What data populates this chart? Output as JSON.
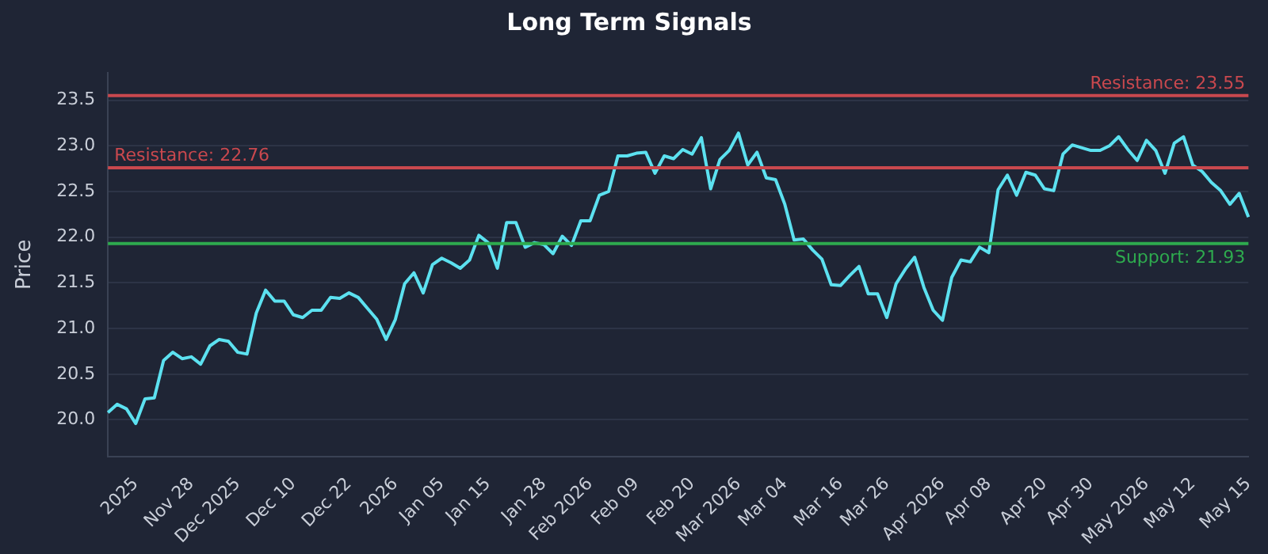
{
  "chart_data": {
    "type": "line",
    "title": "Long Term Signals",
    "ylabel": "Price",
    "categories": [
      null,
      null,
      null,
      "2025",
      null,
      null,
      null,
      null,
      null,
      "Nov 28",
      null,
      null,
      null,
      null,
      "Dec 2025",
      null,
      null,
      null,
      null,
      null,
      "Dec 10",
      null,
      null,
      null,
      null,
      null,
      "Dec 22",
      null,
      null,
      null,
      null,
      "2026",
      null,
      null,
      null,
      null,
      "Jan 05",
      null,
      null,
      null,
      null,
      "Jan 15",
      null,
      null,
      null,
      null,
      null,
      "Jan 28",
      null,
      null,
      null,
      null,
      "Feb 2026",
      null,
      null,
      null,
      null,
      "Feb 09",
      null,
      null,
      null,
      null,
      null,
      "Feb 20",
      null,
      null,
      null,
      null,
      "Mar 2026",
      null,
      null,
      null,
      null,
      "Mar 04",
      null,
      null,
      null,
      null,
      null,
      "Mar 16",
      null,
      null,
      null,
      null,
      "Mar 26",
      null,
      null,
      null,
      null,
      null,
      "Apr 2026",
      null,
      null,
      null,
      null,
      "Apr 08",
      null,
      null,
      null,
      null,
      null,
      "Apr 20",
      null,
      null,
      null,
      null,
      "Apr 30",
      null,
      null,
      null,
      null,
      null,
      "May 2026",
      null,
      null,
      null,
      null,
      "May 12",
      null,
      null,
      null,
      null,
      null,
      "May 15"
    ],
    "series": [
      {
        "color": "#5ce1f0",
        "values": [
          20.08,
          20.17,
          20.12,
          19.96,
          20.23,
          20.24,
          20.65,
          20.74,
          20.67,
          20.69,
          20.61,
          20.81,
          20.88,
          20.86,
          20.74,
          20.72,
          21.17,
          21.42,
          21.3,
          21.3,
          21.15,
          21.12,
          21.2,
          21.2,
          21.34,
          21.33,
          21.39,
          21.34,
          21.22,
          21.1,
          20.88,
          21.1,
          21.49,
          21.61,
          21.39,
          21.7,
          21.77,
          21.72,
          21.66,
          21.75,
          22.02,
          21.94,
          21.66,
          22.16,
          22.16,
          21.89,
          21.94,
          21.92,
          21.82,
          22.01,
          21.91,
          22.18,
          22.18,
          22.46,
          22.5,
          22.89,
          22.89,
          22.92,
          22.93,
          22.7,
          22.89,
          22.86,
          22.96,
          22.91,
          23.09,
          22.53,
          22.85,
          22.95,
          23.14,
          22.79,
          22.93,
          22.65,
          22.63,
          22.36,
          21.97,
          21.98,
          21.86,
          21.76,
          21.48,
          21.47,
          21.58,
          21.68,
          21.38,
          21.38,
          21.12,
          21.49,
          21.65,
          21.78,
          21.45,
          21.2,
          21.09,
          21.56,
          21.75,
          21.73,
          21.89,
          21.83,
          22.52,
          22.68,
          22.46,
          22.71,
          22.68,
          22.53,
          22.51,
          22.91,
          23.01,
          22.98,
          22.95,
          22.95,
          23.0,
          23.1,
          22.96,
          22.84,
          23.06,
          22.95,
          22.7,
          23.03,
          23.1,
          22.79,
          22.72,
          22.6,
          22.51,
          22.36,
          22.48,
          22.22
        ]
      }
    ],
    "ylim": [
      19.6,
      23.8
    ],
    "yticks": [
      {
        "value": 20,
        "label": "20.0"
      },
      {
        "value": 20.5,
        "label": "20.5"
      },
      {
        "value": 21,
        "label": "21.0"
      },
      {
        "value": 21.5,
        "label": "21.5"
      },
      {
        "value": 22,
        "label": "22.0"
      },
      {
        "value": 22.5,
        "label": "22.5"
      },
      {
        "value": 23,
        "label": "23.0"
      },
      {
        "value": 23.5,
        "label": "23.5"
      }
    ],
    "ref_lines": [
      {
        "axis": "y",
        "value": 23.55,
        "label": "Resistance: 23.55",
        "color": "#c9484e"
      },
      {
        "axis": "y",
        "value": 22.76,
        "label": "Resistance: 22.76",
        "color": "#c9484e"
      },
      {
        "axis": "y",
        "value": 21.93,
        "label": "Support: 21.93",
        "color": "#2eaa4e"
      }
    ],
    "grid": "y",
    "legend": false,
    "marker": "none",
    "line_style": "solid"
  }
}
